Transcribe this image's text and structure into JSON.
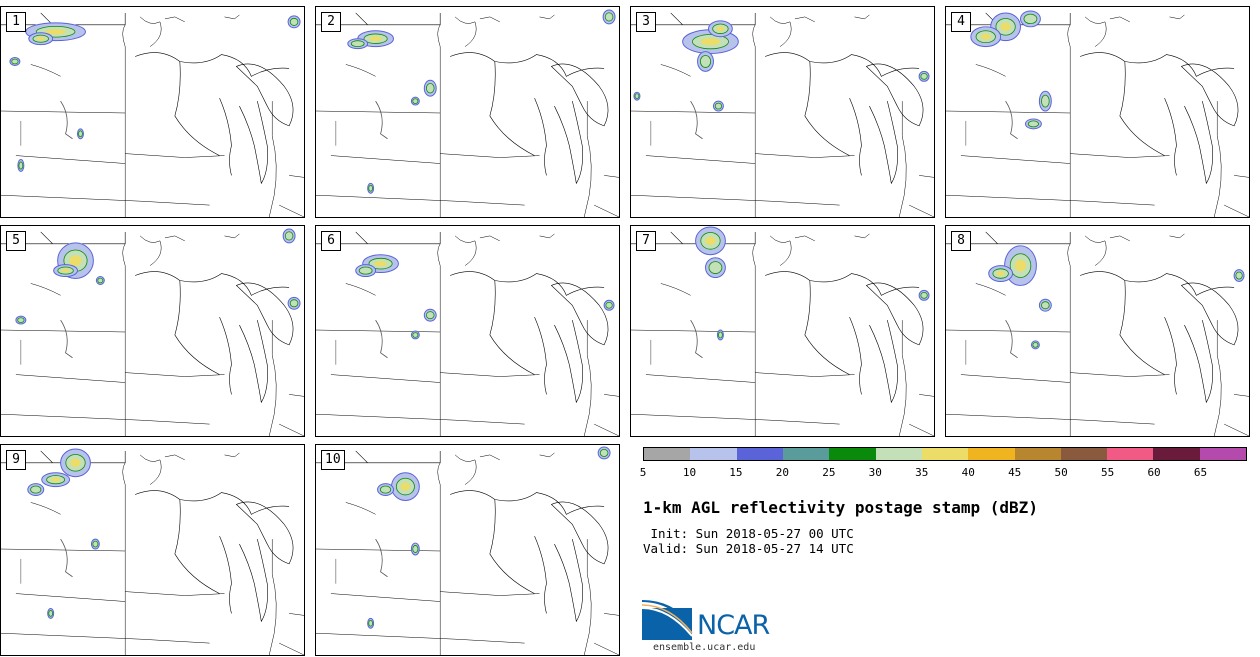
{
  "panels": [
    {
      "label": "1"
    },
    {
      "label": "2"
    },
    {
      "label": "3"
    },
    {
      "label": "4"
    },
    {
      "label": "5"
    },
    {
      "label": "6"
    },
    {
      "label": "7"
    },
    {
      "label": "8"
    },
    {
      "label": "9"
    },
    {
      "label": "10"
    }
  ],
  "colorbar": {
    "colors": [
      "#a6a6a6",
      "#b8c3ec",
      "#5a63d8",
      "#5a9c9c",
      "#0a8a0a",
      "#c3e0b8",
      "#ecdc68",
      "#f0b420",
      "#b8862e",
      "#8a5a3e",
      "#f05a84",
      "#6a1a3a",
      "#b44aac"
    ],
    "ticks": [
      "5",
      "10",
      "15",
      "20",
      "25",
      "30",
      "35",
      "40",
      "45",
      "50",
      "55",
      "60",
      "65"
    ]
  },
  "title": "1-km AGL reflectivity postage stamp (dBZ)",
  "init_line": " Init: Sun 2018-05-27 00 UTC",
  "valid_line": "Valid: Sun 2018-05-27 14 UTC",
  "logo_text": "NCAR",
  "site": "ensemble.ucar.edu"
}
